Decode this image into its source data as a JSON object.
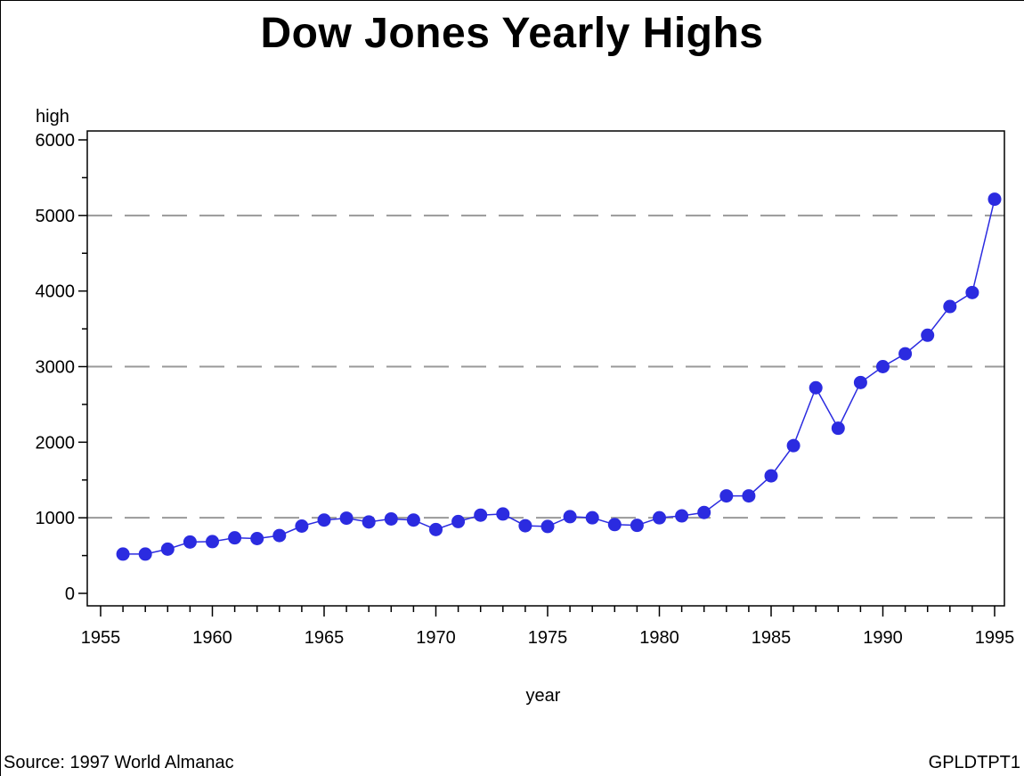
{
  "chart_data": {
    "type": "line",
    "title": "Dow Jones Yearly Highs",
    "xlabel": "year",
    "ylabel": "high",
    "xlim": [
      1955,
      1995
    ],
    "ylim": [
      0,
      6000
    ],
    "x_ticks": [
      "1955",
      "1960",
      "1965",
      "1970",
      "1975",
      "1980",
      "1985",
      "1990",
      "1995"
    ],
    "y_ticks": [
      "0",
      "1000",
      "2000",
      "3000",
      "4000",
      "5000",
      "6000"
    ],
    "reference_lines": [
      1000,
      3000,
      5000
    ],
    "series_color": "#2b2be0",
    "grid_color": "#999999",
    "x": [
      1956,
      1957,
      1958,
      1959,
      1960,
      1961,
      1962,
      1963,
      1964,
      1965,
      1966,
      1967,
      1968,
      1969,
      1970,
      1971,
      1972,
      1973,
      1974,
      1975,
      1976,
      1977,
      1978,
      1979,
      1980,
      1981,
      1982,
      1983,
      1984,
      1985,
      1986,
      1987,
      1988,
      1989,
      1990,
      1991,
      1992,
      1993,
      1994,
      1995
    ],
    "values": [
      520,
      520,
      585,
      680,
      685,
      735,
      725,
      765,
      890,
      970,
      995,
      945,
      985,
      970,
      845,
      950,
      1035,
      1050,
      895,
      885,
      1015,
      1000,
      910,
      900,
      1000,
      1025,
      1070,
      1290,
      1290,
      1555,
      1955,
      2720,
      2185,
      2790,
      3000,
      3170,
      3415,
      3795,
      3980,
      5215
    ]
  },
  "footer": {
    "source": "Source: 1997 World Almanac",
    "figure_id": "GPLDTPT1"
  }
}
